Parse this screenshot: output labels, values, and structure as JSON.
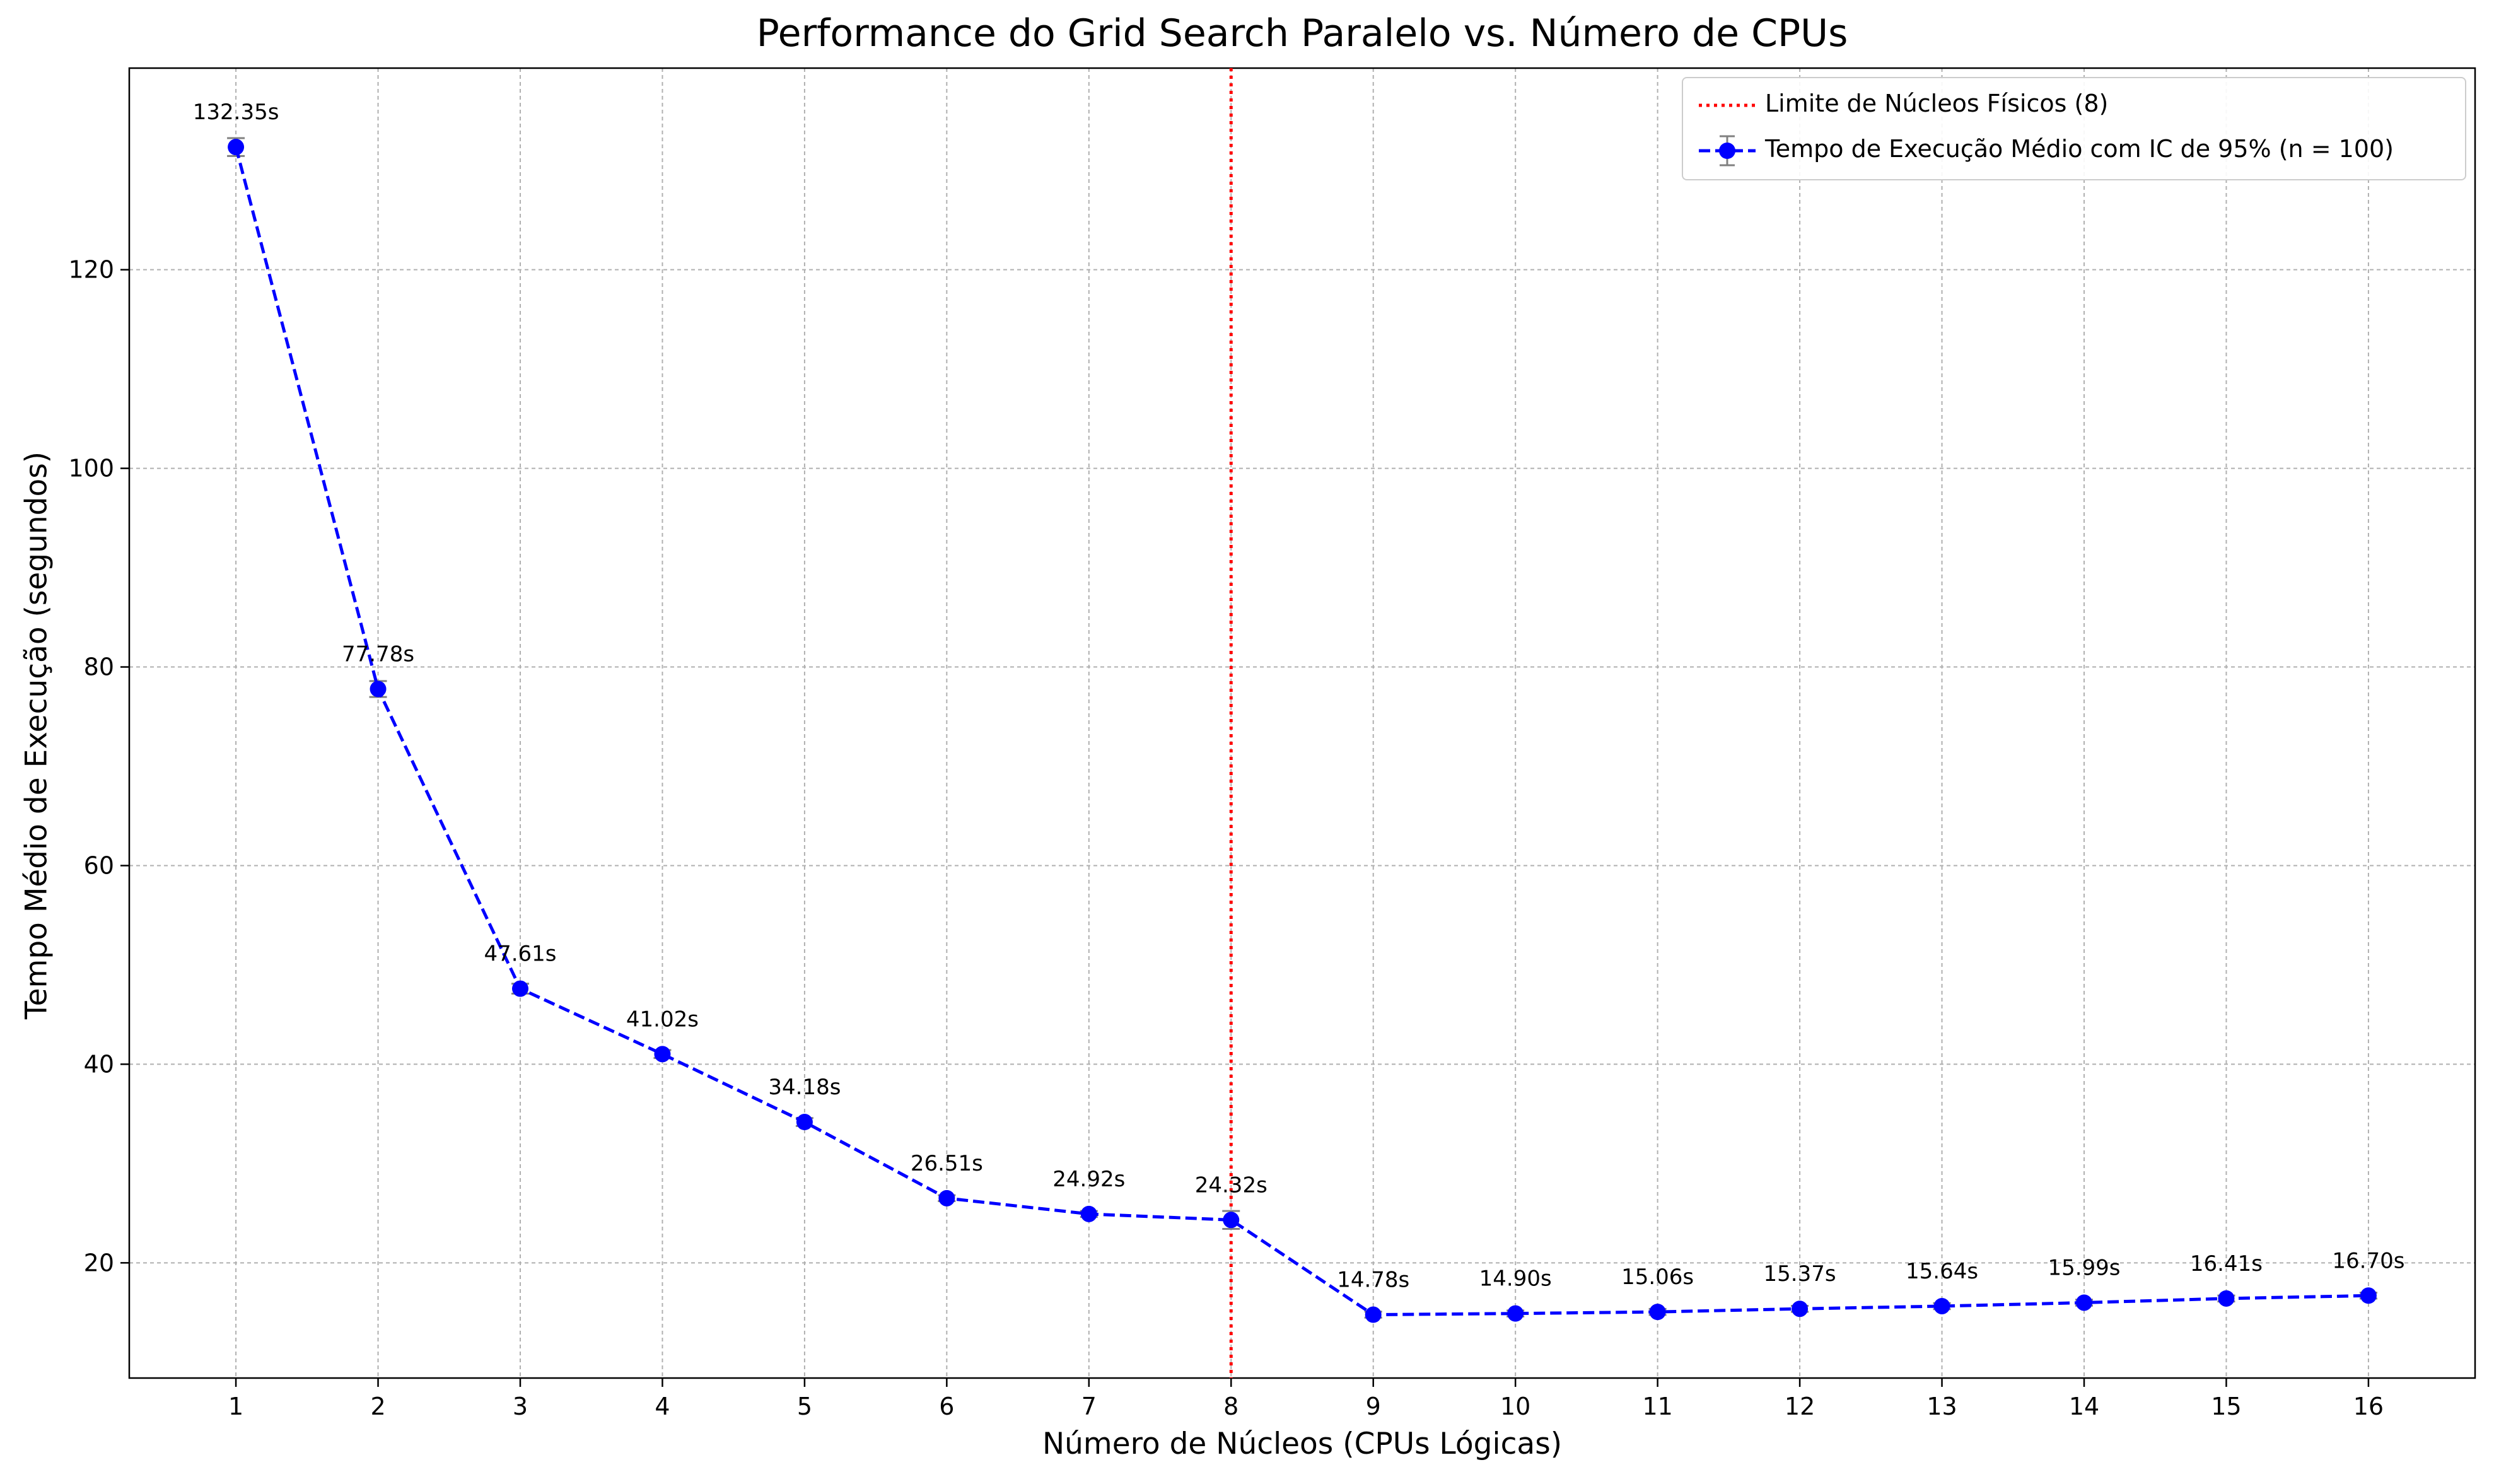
{
  "chart_data": {
    "type": "line",
    "title": "Performance do Grid Search Paralelo vs. Número de CPUs",
    "xlabel": "Número de Núcleos (CPUs Lógicas)",
    "ylabel": "Tempo Médio de Execução (segundos)",
    "x": [
      1,
      2,
      3,
      4,
      5,
      6,
      7,
      8,
      9,
      10,
      11,
      12,
      13,
      14,
      15,
      16
    ],
    "xticks": [
      "1",
      "2",
      "3",
      "4",
      "5",
      "6",
      "7",
      "8",
      "9",
      "10",
      "11",
      "12",
      "13",
      "14",
      "15",
      "16"
    ],
    "xlim": [
      0.25,
      16.75
    ],
    "yticks": [
      "20",
      "40",
      "60",
      "80",
      "100",
      "120"
    ],
    "ytick_values": [
      20,
      40,
      60,
      80,
      100,
      120
    ],
    "ylim": [
      8.4,
      140.3
    ],
    "grid": true,
    "legend_position": "top-right",
    "series": [
      {
        "name": "Tempo de Execução Médio com IC de 95% (n = 100)",
        "values": [
          132.35,
          77.78,
          47.61,
          41.02,
          34.18,
          26.51,
          24.92,
          24.32,
          14.78,
          14.9,
          15.06,
          15.37,
          15.64,
          15.99,
          16.41,
          16.7
        ],
        "ci": [
          0.9,
          0.8,
          0.5,
          0.4,
          0.4,
          0.3,
          0.3,
          0.9,
          0.3,
          0.3,
          0.3,
          0.3,
          0.3,
          0.3,
          0.3,
          0.3
        ],
        "data_labels": [
          "132.35s",
          "77.78s",
          "47.61s",
          "41.02s",
          "34.18s",
          "26.51s",
          "24.92s",
          "24.32s",
          "14.78s",
          "14.90s",
          "15.06s",
          "15.37s",
          "15.64s",
          "15.99s",
          "16.41s",
          "16.70s"
        ],
        "color": "#0000ff",
        "errorbar_color": "#808080",
        "linestyle": "dashed",
        "marker": "circle"
      }
    ],
    "vline": {
      "x": 8,
      "label": "Limite de Núcleos Físicos (8)",
      "color": "#ff0000",
      "linestyle": "dotted"
    }
  }
}
